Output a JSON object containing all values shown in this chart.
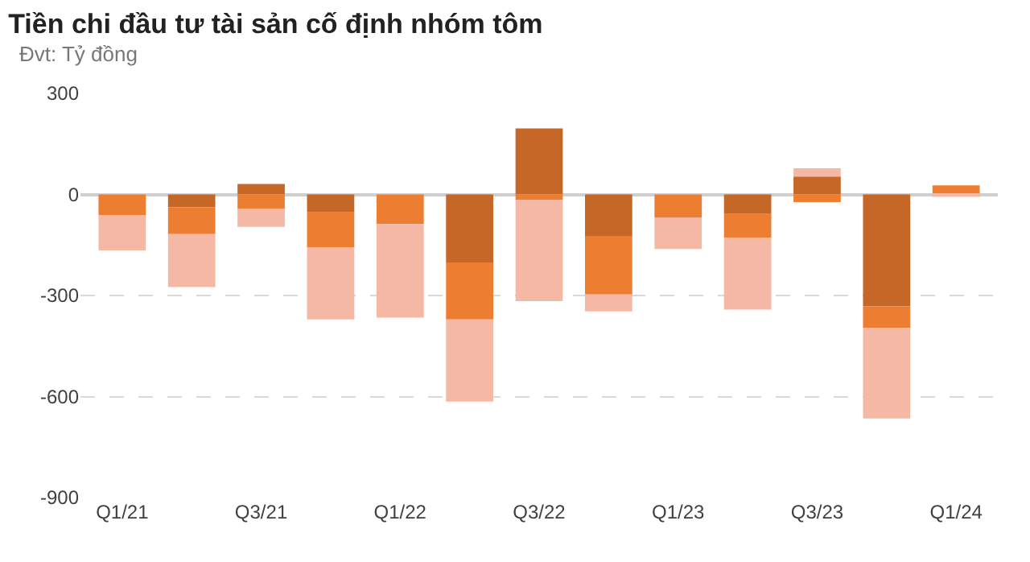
{
  "chart_data": {
    "type": "bar",
    "title": "Tiền chi đầu tư tài sản cố định nhóm tôm",
    "subtitle": "Đvt: Tỷ đồng",
    "categories": [
      "Q1/21",
      null,
      "Q3/21",
      null,
      "Q1/22",
      null,
      "Q3/22",
      null,
      "Q1/23",
      null,
      "Q3/23",
      null,
      "Q1/24"
    ],
    "stacked": true,
    "series": [
      {
        "color": "#c56727",
        "values": [
          0,
          -38,
          31,
          -53,
          0,
          -202,
          196,
          -123,
          0,
          -58,
          53,
          -332,
          0
        ]
      },
      {
        "color": "#ed7d31",
        "values": [
          -61,
          -80,
          -43,
          -105,
          -88,
          -169,
          -17,
          -174,
          -68,
          -70,
          -23,
          -64,
          27
        ]
      },
      {
        "color": "#f4b8a4",
        "values": [
          -105,
          -157,
          -53,
          -213,
          -278,
          -244,
          -300,
          -50,
          -94,
          -214,
          25,
          -269,
          -7
        ]
      }
    ],
    "ylim": [
      -900,
      300
    ],
    "yticks": [
      -900,
      -600,
      -300,
      0,
      300
    ],
    "grid": "y"
  }
}
